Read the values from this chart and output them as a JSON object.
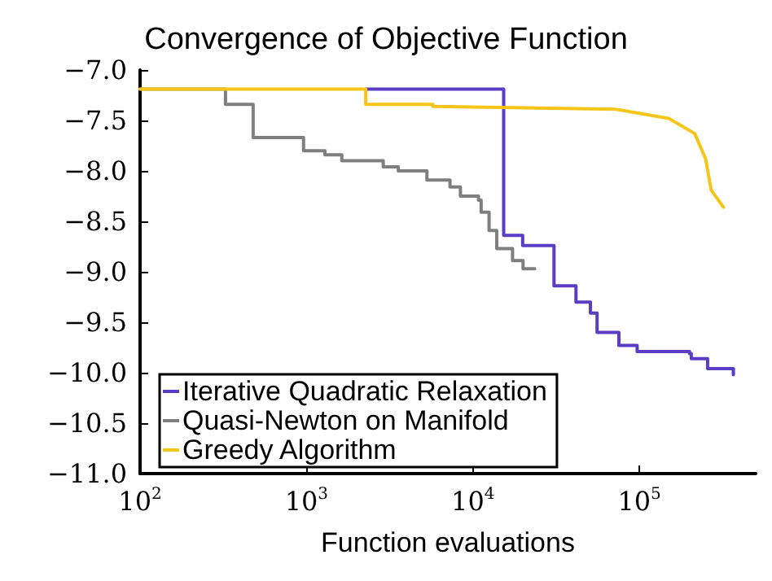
{
  "chart_data": {
    "type": "step",
    "title": "Convergence of Objective Function",
    "xlabel": "Function evaluations",
    "log": "x",
    "xlim": [
      100,
      500000
    ],
    "xticks": [
      {
        "value": 100,
        "label": "10$^{2}$"
      },
      {
        "value": 1000,
        "label": "10$^{3}$"
      },
      {
        "value": 10000,
        "label": "10$^{4}$"
      },
      {
        "value": 100000,
        "label": "10$^{5}$"
      }
    ],
    "ylim": [
      -11,
      -7
    ],
    "yticks": [
      {
        "value": -11,
        "label": "−11.0"
      },
      {
        "value": -10.5,
        "label": "−10.5"
      },
      {
        "value": -10,
        "label": "−10.0"
      },
      {
        "value": -9.5,
        "label": "−9.5"
      },
      {
        "value": -9,
        "label": "−9.0"
      },
      {
        "value": -8.5,
        "label": "−8.5"
      },
      {
        "value": -8,
        "label": "−8.0"
      },
      {
        "value": -7.5,
        "label": "−7.5"
      },
      {
        "value": -7,
        "label": "−7.0"
      }
    ],
    "grid": false,
    "legend": "bottom left",
    "marker": "none",
    "line_style": "solid",
    "series": [
      {
        "name": "Iterative Quadratic Relaxation",
        "color": "#5b3cc4",
        "x": [
          2270,
          15300,
          19900,
          30700,
          41600,
          50800,
          55700,
          75300,
          97000,
          200000,
          205000,
          257000,
          367000
        ],
        "values": [
          -7.19,
          -8.64,
          -8.74,
          -9.14,
          -9.3,
          -9.41,
          -9.6,
          -9.73,
          -9.79,
          -9.81,
          -9.86,
          -9.96,
          -10.02
        ]
      },
      {
        "name": "Quasi-Newton on Manifold",
        "color": "#7f7f7f",
        "x": [
          100,
          326,
          478,
          960,
          1290,
          1630,
          2890,
          3560,
          5290,
          7280,
          8410,
          10800,
          11200,
          12500,
          13900,
          17300,
          20000,
          23500
        ],
        "values": [
          -7.19,
          -7.34,
          -7.67,
          -7.8,
          -7.84,
          -7.9,
          -7.96,
          -8.0,
          -8.09,
          -8.16,
          -8.25,
          -8.29,
          -8.41,
          -8.59,
          -8.77,
          -8.89,
          -8.97,
          -8.97
        ]
      },
      {
        "name": "Greedy Algorithm",
        "color": "#f5c518",
        "type": "line",
        "x": [
          100,
          2270,
          2270,
          5740,
          5740,
          72500,
          150000,
          215000,
          250000,
          270000,
          320000
        ],
        "values": [
          -7.19,
          -7.19,
          -7.34,
          -7.34,
          -7.36,
          -7.39,
          -7.48,
          -7.63,
          -7.88,
          -8.19,
          -8.36
        ]
      }
    ]
  }
}
